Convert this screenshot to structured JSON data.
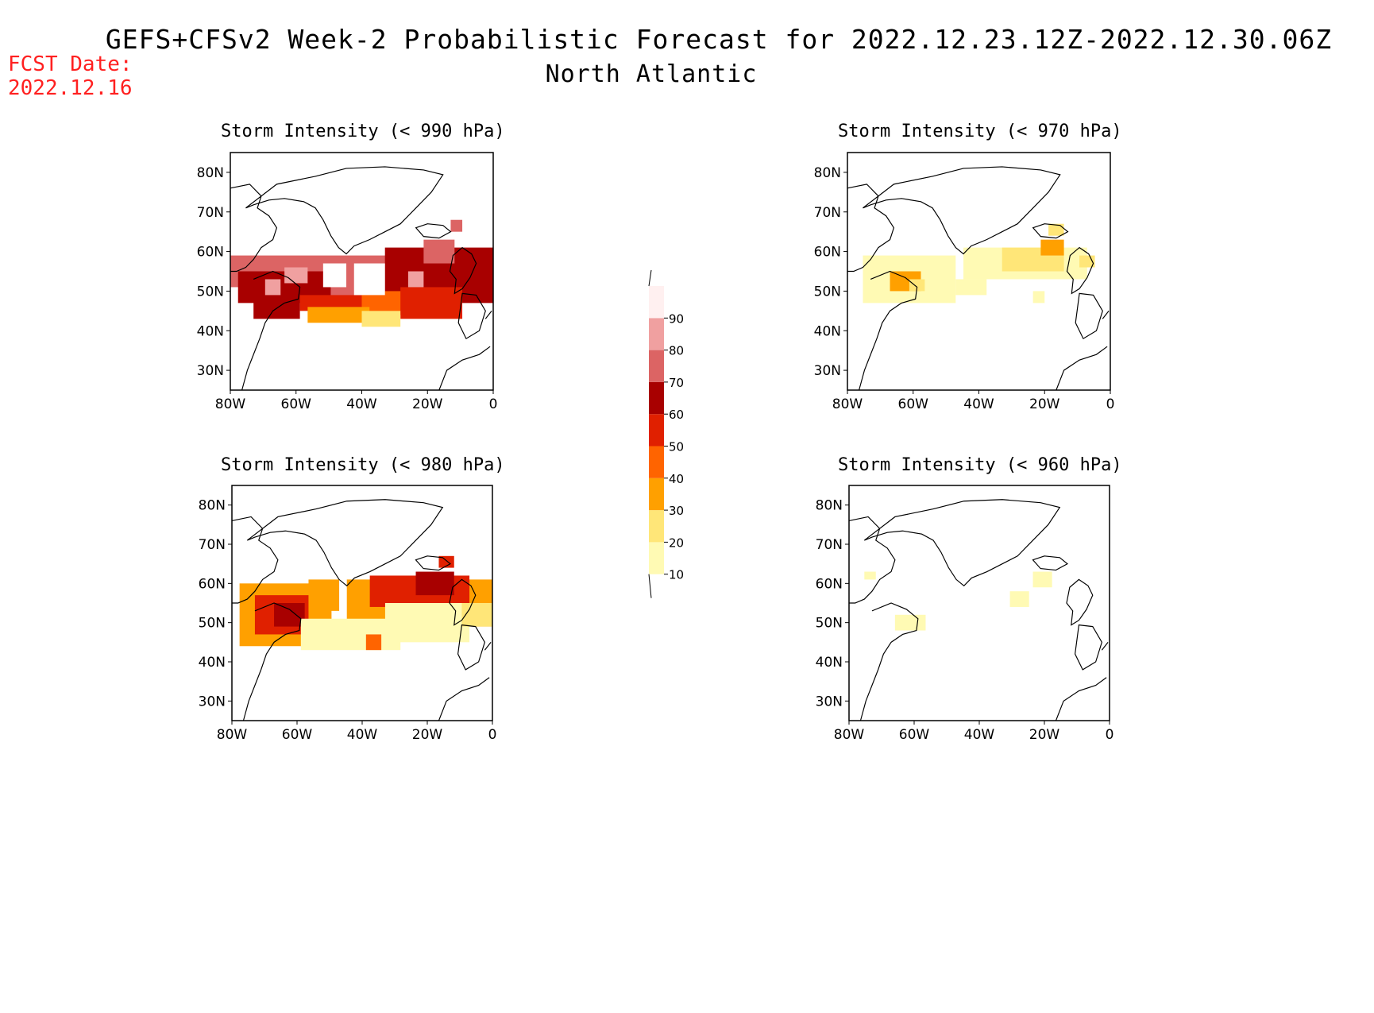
{
  "header": {
    "fcst_label": "FCST Date:",
    "fcst_date": "2022.12.16",
    "title": "GEFS+CFSv2 Week-2 Probabilistic Forecast for 2022.12.23.12Z-2022.12.30.06Z",
    "subtitle": "North Atlantic"
  },
  "map_axes": {
    "lat_labels": [
      "80N",
      "70N",
      "60N",
      "50N",
      "40N",
      "30N"
    ],
    "lat_values": [
      80,
      70,
      60,
      50,
      40,
      30
    ],
    "lon_labels": [
      "80W",
      "60W",
      "40W",
      "20W",
      "0"
    ],
    "lon_values": [
      -80,
      -60,
      -40,
      -20,
      0
    ]
  },
  "panels": [
    {
      "id": "p990",
      "title": "Storm Intensity (< 990 hPa)",
      "threshold_hpa": 990
    },
    {
      "id": "p970",
      "title": "Storm Intensity (< 970 hPa)",
      "threshold_hpa": 970
    },
    {
      "id": "p980",
      "title": "Storm Intensity (< 980 hPa)",
      "threshold_hpa": 980
    },
    {
      "id": "p960",
      "title": "Storm Intensity (< 960 hPa)",
      "threshold_hpa": 960
    }
  ],
  "colorbar": {
    "levels": [
      "10",
      "20",
      "30",
      "40",
      "50",
      "60",
      "70",
      "80",
      "90"
    ],
    "colors": [
      "#fffab4",
      "#ffe678",
      "#ffa000",
      "#ff6400",
      "#e02000",
      "#a80000",
      "#dc6464",
      "#f0a0a0",
      "#fff0f0"
    ]
  }
}
